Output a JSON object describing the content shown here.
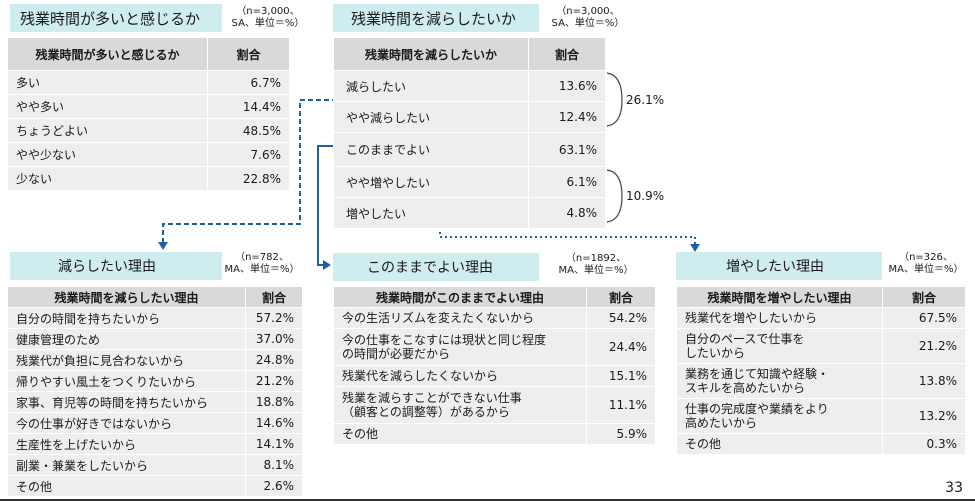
{
  "section1": {
    "title": "残業時間が多いと感じるか",
    "note": "（n=3,000、\nSA、単位＝%）",
    "header": [
      "残業時間が多いと感じるか",
      "割合"
    ],
    "rows": [
      {
        "label": "多い",
        "value": "6.7%"
      },
      {
        "label": "やや多い",
        "value": "14.4%"
      },
      {
        "label": "ちょうどよい",
        "value": "48.5%"
      },
      {
        "label": "やや少ない",
        "value": "7.6%"
      },
      {
        "label": "少ない",
        "value": "22.8%"
      }
    ]
  },
  "section2": {
    "title": "残業時間を減らしたいか",
    "note": "（n=3,000、\nSA、単位＝%）",
    "header": [
      "残業時間を減らしたいか",
      "割合"
    ],
    "rows": [
      {
        "label": "減らしたい",
        "value": "13.6%"
      },
      {
        "label": "やや減らしたい",
        "value": "12.4%"
      },
      {
        "label": "このままでよい",
        "value": "63.1%"
      },
      {
        "label": "やや増やしたい",
        "value": "6.1%"
      },
      {
        "label": "増やしたい",
        "value": "4.8%"
      }
    ],
    "group_reduce": "26.1%",
    "group_increase": "10.9%"
  },
  "section3": {
    "title": "減らしたい理由",
    "note": "（n=782、\nMA、単位＝%）",
    "header": [
      "残業時間を減らしたい理由",
      "割合"
    ],
    "rows": [
      {
        "label": "自分の時間を持ちたいから",
        "value": "57.2%"
      },
      {
        "label": "健康管理のため",
        "value": "37.0%"
      },
      {
        "label": "残業代が負担に見合わないから",
        "value": "24.8%"
      },
      {
        "label": "帰りやすい風土をつくりたいから",
        "value": "21.2%"
      },
      {
        "label": "家事、育児等の時間を持ちたいから",
        "value": "18.8%"
      },
      {
        "label": "今の仕事が好きではないから",
        "value": "14.6%"
      },
      {
        "label": "生産性を上げたいから",
        "value": "14.1%"
      },
      {
        "label": "副業・兼業をしたいから",
        "value": "8.1%"
      },
      {
        "label": "その他",
        "value": "2.6%"
      }
    ]
  },
  "section4": {
    "title": "このままでよい理由",
    "note": "（n=1892、\nMA、単位＝%）",
    "header": [
      "残業時間がこのままでよい理由",
      "割合"
    ],
    "rows": [
      {
        "label": "今の生活リズムを変えたくないから",
        "value": "54.2%"
      },
      {
        "label": "今の仕事をこなすには現状と同じ程度\nの時間が必要だから",
        "value": "24.4%"
      },
      {
        "label": "残業代を減らしたくないから",
        "value": "15.1%"
      },
      {
        "label": "残業を減らすことができない仕事\n（顧客との調整等）があるから",
        "value": "11.1%"
      },
      {
        "label": "その他",
        "value": "5.9%"
      }
    ]
  },
  "section5": {
    "title": "増やしたい理由",
    "note": "（n=326、\nMA、単位＝%）",
    "header": [
      "残業時間を増やしたい理由",
      "割合"
    ],
    "rows": [
      {
        "label": "残業代を増やしたいから",
        "value": "67.5%"
      },
      {
        "label": "自分のペースで仕事を\nしたいから",
        "value": "21.2%"
      },
      {
        "label": "業務を通じて知識や経験・\nスキルを高めたいから",
        "value": "13.8%"
      },
      {
        "label": "仕事の完成度や業績をより\n高めたいから",
        "value": "13.2%"
      },
      {
        "label": "その他",
        "value": "0.3%"
      }
    ]
  },
  "page_number": "33",
  "colors": {
    "title_bg": "#cfecee",
    "header_bg": "#d9d9d9",
    "row_bg": "#eeeeee",
    "accent_blue": "#1f5fa8"
  }
}
